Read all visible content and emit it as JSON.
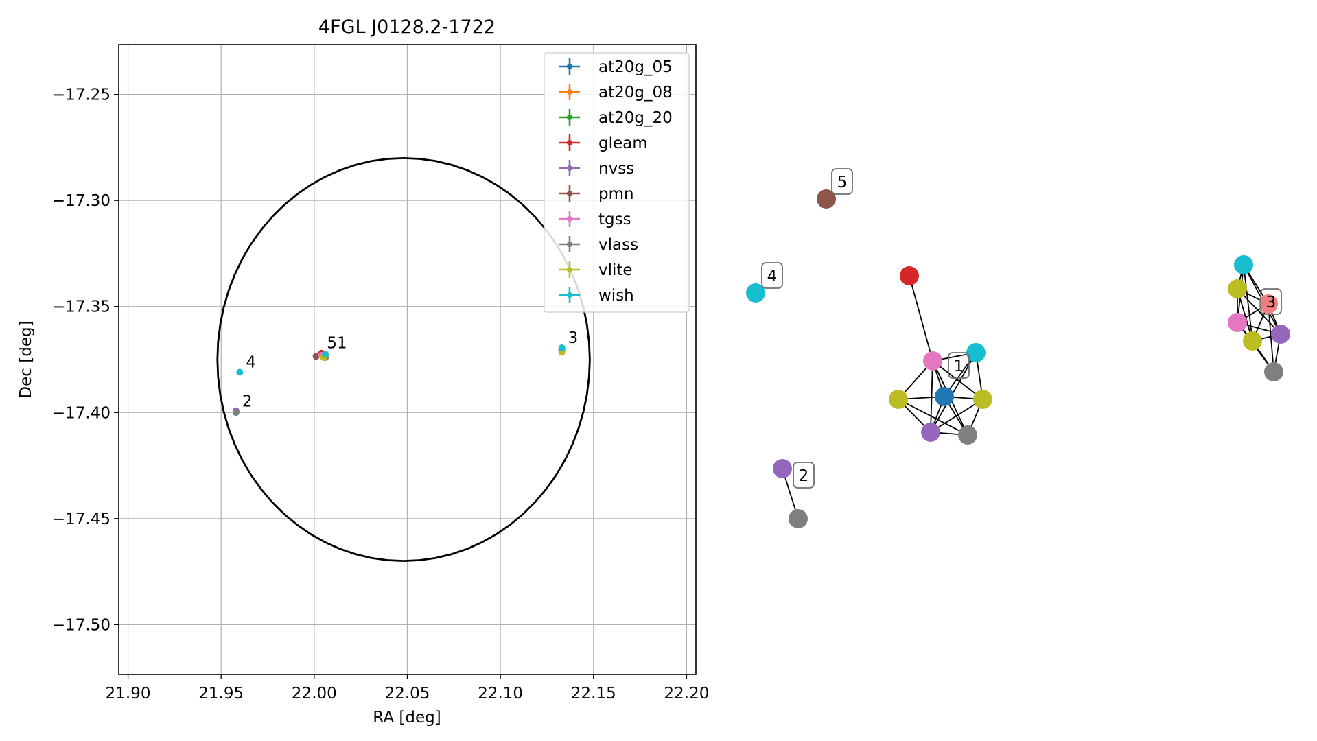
{
  "chart_data": [
    {
      "type": "scatter",
      "title": "4FGL J0128.2-1722",
      "xlabel": "RA [deg]",
      "ylabel": "Dec [deg]",
      "xlim": [
        21.895,
        22.205
      ],
      "ylim": [
        -17.5235,
        -17.2265
      ],
      "grid": true,
      "legend_position": "top-right",
      "xticks": [
        {
          "v": 21.9,
          "label": "21.90"
        },
        {
          "v": 21.95,
          "label": "21.95"
        },
        {
          "v": 22.0,
          "label": "22.00"
        },
        {
          "v": 22.05,
          "label": "22.05"
        },
        {
          "v": 22.1,
          "label": "22.10"
        },
        {
          "v": 22.15,
          "label": "22.15"
        },
        {
          "v": 22.2,
          "label": "22.20"
        }
      ],
      "yticks": [
        {
          "v": -17.25,
          "label": "−17.25"
        },
        {
          "v": -17.3,
          "label": "−17.30"
        },
        {
          "v": -17.35,
          "label": "−17.35"
        },
        {
          "v": -17.4,
          "label": "−17.40"
        },
        {
          "v": -17.45,
          "label": "−17.45"
        },
        {
          "v": -17.5,
          "label": "−17.50"
        }
      ],
      "ellipse": {
        "center": [
          22.048,
          -17.375
        ],
        "a": 0.1,
        "b": 0.095,
        "color": "#000000"
      },
      "series": [
        {
          "name": "at20g_05",
          "color": "#1f77b4",
          "points": [
            [
              22.133,
              -17.3705
            ]
          ]
        },
        {
          "name": "at20g_08",
          "color": "#ff7f0e",
          "points": []
        },
        {
          "name": "at20g_20",
          "color": "#2ca02c",
          "points": []
        },
        {
          "name": "gleam",
          "color": "#d62728",
          "points": [
            [
              22.004,
              -17.372
            ]
          ]
        },
        {
          "name": "nvss",
          "color": "#9467bd",
          "points": [
            [
              21.958,
              -17.3992
            ],
            [
              22.133,
              -17.3712
            ],
            [
              22.005,
              -17.3735
            ]
          ]
        },
        {
          "name": "pmn",
          "color": "#8c564b",
          "points": [
            [
              22.001,
              -17.3735
            ]
          ]
        },
        {
          "name": "tgss",
          "color": "#e377c2",
          "points": [
            [
              22.004,
              -17.373
            ]
          ]
        },
        {
          "name": "vlass",
          "color": "#7f7f7f",
          "points": [
            [
              21.958,
              -17.4
            ],
            [
              22.006,
              -17.374
            ],
            [
              22.133,
              -17.371
            ]
          ]
        },
        {
          "name": "vlite",
          "color": "#bcbd22",
          "points": [
            [
              22.005,
              -17.374
            ],
            [
              22.133,
              -17.3715
            ]
          ]
        },
        {
          "name": "wish",
          "color": "#17becf",
          "points": [
            [
              21.96,
              -17.381
            ],
            [
              22.133,
              -17.3695
            ],
            [
              22.006,
              -17.3725
            ]
          ]
        }
      ],
      "annotations": [
        {
          "text": "4",
          "x": 21.96,
          "y": -17.381
        },
        {
          "text": "2",
          "x": 21.958,
          "y": -17.3995
        },
        {
          "text": "51",
          "x": 22.0035,
          "y": -17.372
        },
        {
          "text": "3",
          "x": 22.133,
          "y": -17.3695
        }
      ]
    },
    {
      "type": "network",
      "nodes": [
        {
          "id": "n5",
          "color": "#8c564b",
          "label": "5"
        },
        {
          "id": "n4",
          "color": "#17becf",
          "label": "4"
        },
        {
          "id": "g",
          "color": "#d62728"
        },
        {
          "id": "t1",
          "color": "#e377c2",
          "label": "1"
        },
        {
          "id": "w1",
          "color": "#17becf"
        },
        {
          "id": "b1",
          "color": "#1f77b4"
        },
        {
          "id": "y1a",
          "color": "#bcbd22"
        },
        {
          "id": "y1b",
          "color": "#bcbd22"
        },
        {
          "id": "p1",
          "color": "#9467bd"
        },
        {
          "id": "v1",
          "color": "#7f7f7f"
        },
        {
          "id": "p2",
          "color": "#9467bd"
        },
        {
          "id": "v2",
          "color": "#7f7f7f",
          "label": "2"
        },
        {
          "id": "w3",
          "color": "#17becf"
        },
        {
          "id": "y3a",
          "color": "#bcbd22"
        },
        {
          "id": "r3",
          "color": "#f08080",
          "label": "3"
        },
        {
          "id": "t3",
          "color": "#e377c2"
        },
        {
          "id": "y3b",
          "color": "#bcbd22"
        },
        {
          "id": "p3",
          "color": "#9467bd"
        },
        {
          "id": "v3",
          "color": "#7f7f7f"
        }
      ],
      "edges": [
        [
          "g",
          "t1"
        ],
        [
          "t1",
          "w1"
        ],
        [
          "t1",
          "b1"
        ],
        [
          "t1",
          "y1a"
        ],
        [
          "t1",
          "p1"
        ],
        [
          "t1",
          "v1"
        ],
        [
          "t1",
          "y1b"
        ],
        [
          "w1",
          "b1"
        ],
        [
          "w1",
          "y1b"
        ],
        [
          "w1",
          "p1"
        ],
        [
          "b1",
          "y1a"
        ],
        [
          "b1",
          "y1b"
        ],
        [
          "b1",
          "p1"
        ],
        [
          "b1",
          "v1"
        ],
        [
          "y1a",
          "p1"
        ],
        [
          "y1a",
          "v1"
        ],
        [
          "y1b",
          "v1"
        ],
        [
          "y1b",
          "p1"
        ],
        [
          "p1",
          "v1"
        ],
        [
          "p2",
          "v2"
        ],
        [
          "w3",
          "y3a"
        ],
        [
          "w3",
          "r3"
        ],
        [
          "w3",
          "t3"
        ],
        [
          "w3",
          "p3"
        ],
        [
          "w3",
          "y3b"
        ],
        [
          "y3a",
          "r3"
        ],
        [
          "y3a",
          "t3"
        ],
        [
          "y3a",
          "y3b"
        ],
        [
          "y3a",
          "p3"
        ],
        [
          "r3",
          "t3"
        ],
        [
          "r3",
          "y3b"
        ],
        [
          "r3",
          "p3"
        ],
        [
          "r3",
          "v3"
        ],
        [
          "t3",
          "y3b"
        ],
        [
          "t3",
          "p3"
        ],
        [
          "t3",
          "v3"
        ],
        [
          "y3b",
          "p3"
        ],
        [
          "y3b",
          "v3"
        ],
        [
          "p3",
          "v3"
        ]
      ]
    }
  ]
}
